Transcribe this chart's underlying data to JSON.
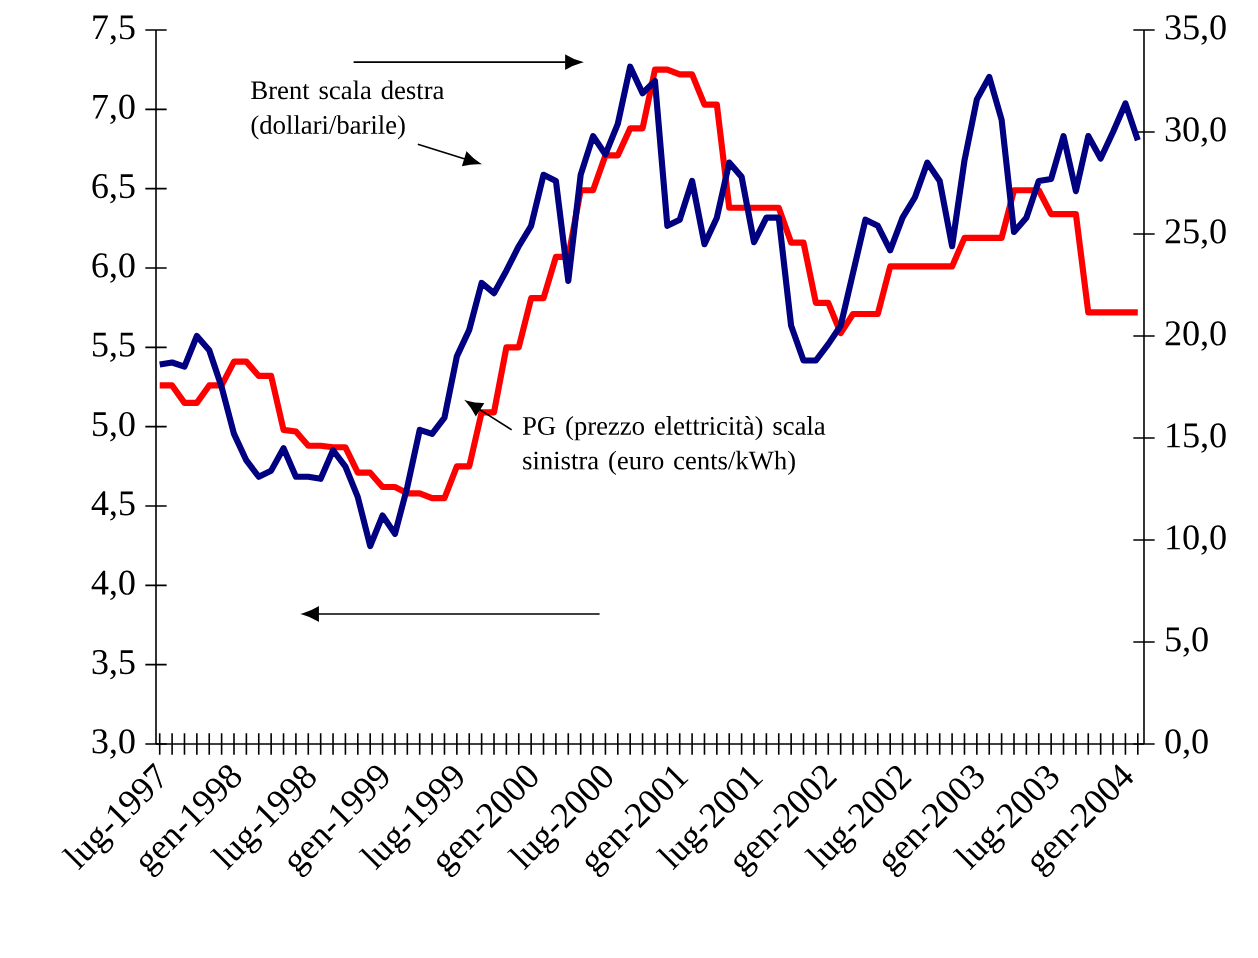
{
  "chart_data": {
    "type": "line",
    "categories": [
      "lug-1997",
      null,
      null,
      null,
      null,
      null,
      "gen-1998",
      null,
      null,
      null,
      null,
      null,
      "lug-1998",
      null,
      null,
      null,
      null,
      null,
      "gen-1999",
      null,
      null,
      null,
      null,
      null,
      "lug-1999",
      null,
      null,
      null,
      null,
      null,
      "gen-2000",
      null,
      null,
      null,
      null,
      null,
      "lug-2000",
      null,
      null,
      null,
      null,
      null,
      "gen-2001",
      null,
      null,
      null,
      null,
      null,
      "lug-2001",
      null,
      null,
      null,
      null,
      null,
      "gen-2002",
      null,
      null,
      null,
      null,
      null,
      "lug-2002",
      null,
      null,
      null,
      null,
      null,
      "gen-2003",
      null,
      null,
      null,
      null,
      null,
      "lug-2003",
      null,
      null,
      null,
      null,
      null,
      "gen-2004",
      null
    ],
    "series": [
      {
        "color": "#ff0000",
        "values": [
          5.26,
          5.26,
          5.15,
          5.15,
          5.26,
          5.26,
          5.41,
          5.41,
          5.32,
          5.32,
          4.98,
          4.97,
          4.88,
          4.88,
          4.87,
          4.87,
          4.71,
          4.71,
          4.62,
          4.62,
          4.58,
          4.58,
          4.55,
          4.55,
          4.75,
          4.75,
          5.09,
          5.09,
          5.5,
          5.5,
          5.81,
          5.81,
          6.07,
          6.07,
          6.49,
          6.49,
          6.71,
          6.71,
          6.88,
          6.88,
          7.25,
          7.25,
          7.22,
          7.22,
          7.03,
          7.03,
          6.38,
          6.38,
          6.38,
          6.38,
          6.38,
          6.16,
          6.16,
          5.78,
          5.78,
          5.59,
          5.71,
          5.71,
          5.71,
          6.01,
          6.01,
          6.01,
          6.01,
          6.01,
          6.01,
          6.19,
          6.19,
          6.19,
          6.19,
          6.49,
          6.49,
          6.49,
          6.34,
          6.34,
          6.34,
          5.72,
          5.72,
          5.72,
          5.72,
          5.72
        ]
      },
      {
        "color": "#000080",
        "axis": "y2",
        "values": [
          18.6,
          18.7,
          18.5,
          20.0,
          19.3,
          17.5,
          15.2,
          13.9,
          13.1,
          13.4,
          14.5,
          13.1,
          13.1,
          13.0,
          14.4,
          13.6,
          12.1,
          9.7,
          11.2,
          10.3,
          12.6,
          15.4,
          15.2,
          16.0,
          19.0,
          20.3,
          22.6,
          22.1,
          23.2,
          24.4,
          25.4,
          27.9,
          27.6,
          22.7,
          27.9,
          29.8,
          28.9,
          30.4,
          33.2,
          31.9,
          32.5,
          25.4,
          25.7,
          27.6,
          24.5,
          25.8,
          28.5,
          27.8,
          24.6,
          25.8,
          25.8,
          20.5,
          18.8,
          18.8,
          19.6,
          20.5,
          23.1,
          25.7,
          25.4,
          24.2,
          25.8,
          26.8,
          28.5,
          27.6,
          24.4,
          28.6,
          31.6,
          32.7,
          30.6,
          25.1,
          25.8,
          27.6,
          27.7,
          29.8,
          27.1,
          29.8,
          28.7,
          30.0,
          31.4,
          29.6
        ]
      }
    ],
    "ylim": [
      3.0,
      7.5
    ],
    "yticks": [
      {
        "value": 3.0,
        "label": "3,0"
      },
      {
        "value": 3.5,
        "label": "3,5"
      },
      {
        "value": 4.0,
        "label": "4,0"
      },
      {
        "value": 4.5,
        "label": "4,5"
      },
      {
        "value": 5.0,
        "label": "5,0"
      },
      {
        "value": 5.5,
        "label": "5,5"
      },
      {
        "value": 6.0,
        "label": "6,0"
      },
      {
        "value": 6.5,
        "label": "6,5"
      },
      {
        "value": 7.0,
        "label": "7,0"
      },
      {
        "value": 7.5,
        "label": "7,5"
      }
    ],
    "y2lim": [
      0,
      35
    ],
    "y2ticks": [
      {
        "value": 0,
        "label": "0,0"
      },
      {
        "value": 5,
        "label": "5,0"
      },
      {
        "value": 10,
        "label": "10,0"
      },
      {
        "value": 15,
        "label": "15,0"
      },
      {
        "value": 20,
        "label": "20,0"
      },
      {
        "value": 25,
        "label": "25,0"
      },
      {
        "value": 30,
        "label": "30,0"
      },
      {
        "value": 35,
        "label": "35,0"
      }
    ],
    "annotations": [
      "Brent scala destra (dollari/barile)",
      "PG (prezzo elettricità) scala sinistra (euro cents/kWh)"
    ],
    "marker": "none",
    "line_style": "solid"
  }
}
